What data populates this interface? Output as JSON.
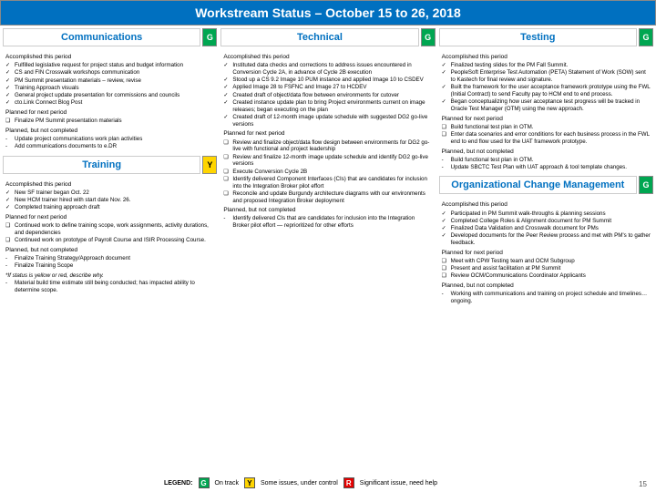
{
  "title": "Workstream Status – October 15 to 26, 2018",
  "status_colors": {
    "G": "#00a651",
    "Y": "#ffd500",
    "R": "#e60000"
  },
  "legend": {
    "label": "LEGEND:",
    "items": [
      {
        "code": "G",
        "text": "On track"
      },
      {
        "code": "Y",
        "text": "Some issues, under control"
      },
      {
        "code": "R",
        "text": "Significant issue, need help"
      }
    ]
  },
  "page_number": "15",
  "sections": {
    "communications": {
      "title": "Communications",
      "status": "G",
      "groups": [
        {
          "heading": "Accomplished this period",
          "bullet": "check",
          "items": [
            "Fulfilled legislative request for project status and budget information",
            "CS and FIN Crosswalk workshops communication",
            "PM Summit presentation materials – review, revise",
            "Training Approach visuals",
            "General project update presentation for commissions and councils",
            "cto.Link Connect Blog Post"
          ]
        },
        {
          "heading": "Planned for next period",
          "bullet": "box",
          "items": [
            "Finalize PM Summit presentation materials"
          ]
        },
        {
          "heading": "Planned, but not completed",
          "bullet": "dash",
          "items": [
            "Update project communications work plan activities",
            "Add communications documents to e.DR"
          ]
        }
      ]
    },
    "training": {
      "title": "Training",
      "status": "Y",
      "groups": [
        {
          "heading": "Accomplished this period",
          "bullet": "check",
          "items": [
            "New SF trainer began Oct. 22",
            "New HCM trainer hired with start date Nov. 26.",
            "Completed training approach draft"
          ]
        },
        {
          "heading": "Planned for next period",
          "bullet": "box",
          "items": [
            "Continued work to define training scope, work assignments, activity durations, and dependencies",
            "Continued work on prototype of Payroll Course and ISIR Processing Course."
          ]
        },
        {
          "heading": "Planned, but not completed",
          "bullet": "dash",
          "items": [
            "Finalize Training Strategy/Approach document",
            "Finalize Training Scope"
          ]
        }
      ],
      "note": "*If status is yellow or red, describe why.",
      "note_items": [
        "Material build time estimate still being conducted; has impacted ability to determine scope."
      ]
    },
    "technical": {
      "title": "Technical",
      "status": "G",
      "groups": [
        {
          "heading": "Accomplished this period",
          "bullet": "check",
          "items": [
            "Instituted data checks and corrections to address issues encountered in Conversion Cycle 2A, in advance of Cycle 2B execution",
            "Stood up a CS 9.2 Image 10 PUM instance and applied Image 10 to CSDEV",
            "Applied Image 28 to FSFNC and Image 27 to HCDEV",
            "Created draft of object/data flow between environments for cutover",
            "Created instance update plan to bring Project environments current on image releases; began executing on the plan",
            "Created draft of 12-month image update schedule with suggested DG2 go-live versions"
          ]
        },
        {
          "heading": "Planned for next period",
          "bullet": "box",
          "items": [
            "Review and finalize object/data flow design between environments for DG2 go-live with functional and project leadership",
            "Review and finalize 12-month image update schedule and identify DG2 go-live versions",
            "Execute Conversion Cycle 2B",
            "Identify delivered Component Interfaces (CIs) that are candidates for inclusion into the Integration Broker pilot effort",
            "Reconcile and update Burgundy architecture diagrams with our environments and proposed Integration Broker deployment"
          ]
        },
        {
          "heading": "Planned, but not completed",
          "bullet": "dash",
          "items": [
            "Identify delivered CIs that are candidates for inclusion into the Integration Broker pilot effort — reprioritized for other efforts"
          ]
        }
      ]
    },
    "testing": {
      "title": "Testing",
      "status": "G",
      "groups": [
        {
          "heading": "Accomplished this period",
          "bullet": "check",
          "items": [
            "Finalized testing slides for the PM Fall Summit.",
            "PeopleSoft Enterprise Test Automation (PETA) Statement of Work (SOW) sent to Kastech for final review and signature.",
            "Built the framework for the user acceptance framework prototype using the FWL (Initial Contract) to send Faculty pay to HCM end to end process.",
            "Began conceptualizing how user acceptance test progress will be tracked in Oracle Test Manager (OTM) using the new approach."
          ]
        },
        {
          "heading": "Planned for next period",
          "bullet": "box",
          "items": [
            "Build functional test plan in OTM.",
            "Enter data scenarios and error conditions for each business process in the FWL end to end flow used for the UAT framework prototype."
          ]
        },
        {
          "heading": "Planned, but not completed",
          "bullet": "dash",
          "items": [
            "Build functional test plan in OTM.",
            "Update SBCTC Test Plan with UAT approach & tool template changes."
          ]
        }
      ]
    },
    "ocm": {
      "title": "Organizational Change Management",
      "status": "G",
      "groups": [
        {
          "heading": "Accomplished this period",
          "bullet": "check",
          "items": [
            "Participated in PM Summit walk-throughs & planning sessions",
            "Completed College Roles & Alignment document for PM Summit",
            "Finalized Data Validation and Crosswalk document for PMs",
            "Developed documents for the Peer Review process and met with PM's to gather feedback."
          ]
        },
        {
          "heading": "Planned for next period",
          "bullet": "box",
          "items": [
            "Meet with CPW Testing team and OCM Subgroup",
            "Present and assist facilitation at PM Summit",
            "Review OCM/Communications Coordinator Applicants"
          ]
        },
        {
          "heading": "Planned, but not completed",
          "bullet": "dash",
          "items": [
            "Working with communications and training on project schedule and timelines…ongoing."
          ]
        }
      ]
    }
  }
}
